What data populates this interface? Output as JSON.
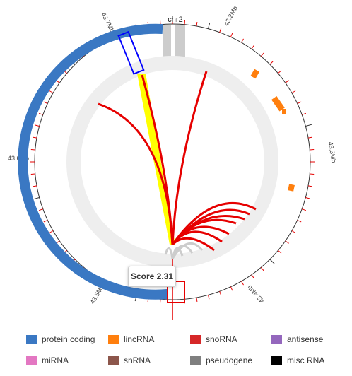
{
  "chromosome": "chr2",
  "tick_labels": [
    "43.2Mb",
    "43.3Mb",
    "43.4Mb",
    "43.5Mb",
    "43.6Mb",
    "43.7Mb"
  ],
  "tooltip": {
    "text": "Score 2.31"
  },
  "legend": [
    {
      "label": "protein coding",
      "color": "#3a78c3"
    },
    {
      "label": "lincRNA",
      "color": "#ff7f0e"
    },
    {
      "label": "snoRNA",
      "color": "#d62728"
    },
    {
      "label": "antisense",
      "color": "#9467bd"
    },
    {
      "label": "miRNA",
      "color": "#e377c2"
    },
    {
      "label": "snRNA",
      "color": "#8c564b"
    },
    {
      "label": "pseudogene",
      "color": "#7f7f7f"
    },
    {
      "label": "misc RNA",
      "color": "#000000"
    }
  ],
  "colors": {
    "protein_coding": "#3a78c3",
    "lincRNA": "#ff7f0e",
    "snoRNA": "#d62728",
    "highlight_link": "#ffff00",
    "selection_box": "#0000ff",
    "track_bg": "#eeeeee",
    "grey_link": "#cccccc"
  }
}
